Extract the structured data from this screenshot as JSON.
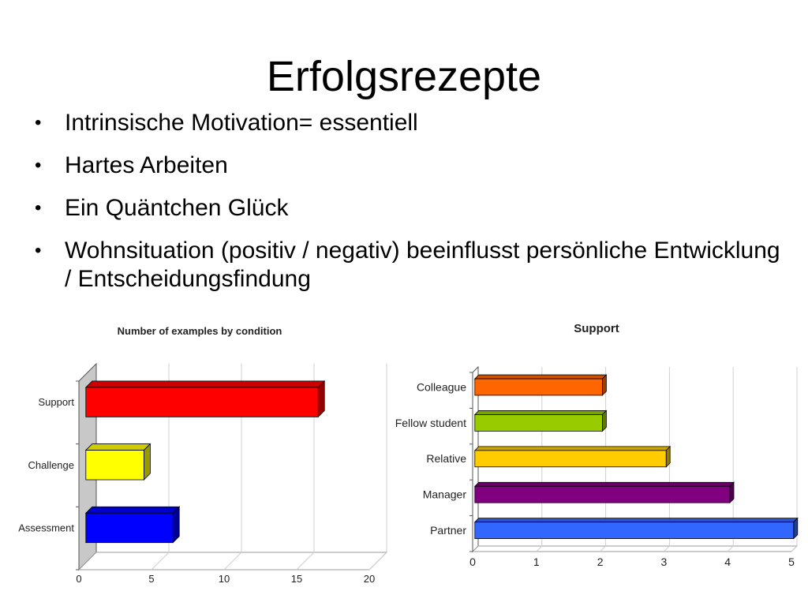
{
  "slide": {
    "title": "Erfolgsrezepte",
    "bullets": [
      "Intrinsische Motivation= essentiell",
      "Hartes Arbeiten",
      "Ein Quäntchen Glück",
      "Wohnsituation (positiv / negativ) beeinflusst persönliche Entwicklung / Entscheidungsfindung"
    ]
  },
  "chart_data": [
    {
      "type": "bar",
      "orientation": "horizontal",
      "title": "Number of examples by condition",
      "categories": [
        "Support",
        "Challenge",
        "Assessment"
      ],
      "values": [
        16,
        4,
        6
      ],
      "colors": [
        "#ff0000",
        "#ffff00",
        "#0000ff"
      ],
      "xlim": [
        0,
        20
      ],
      "xticks": [
        "0",
        "5",
        "10",
        "15",
        "20"
      ],
      "grid": true,
      "legend": false
    },
    {
      "type": "bar",
      "orientation": "horizontal",
      "title": "Support",
      "categories": [
        "Colleague",
        "Fellow student",
        "Relative",
        "Manager",
        "Partner"
      ],
      "values": [
        2,
        2,
        3,
        4,
        5
      ],
      "colors": [
        "#ff6600",
        "#99cc00",
        "#ffcc00",
        "#800080",
        "#3366ff"
      ],
      "xlim": [
        0,
        5
      ],
      "xticks": [
        "0",
        "1",
        "2",
        "3",
        "4",
        "5"
      ],
      "grid": true,
      "legend": false
    }
  ]
}
